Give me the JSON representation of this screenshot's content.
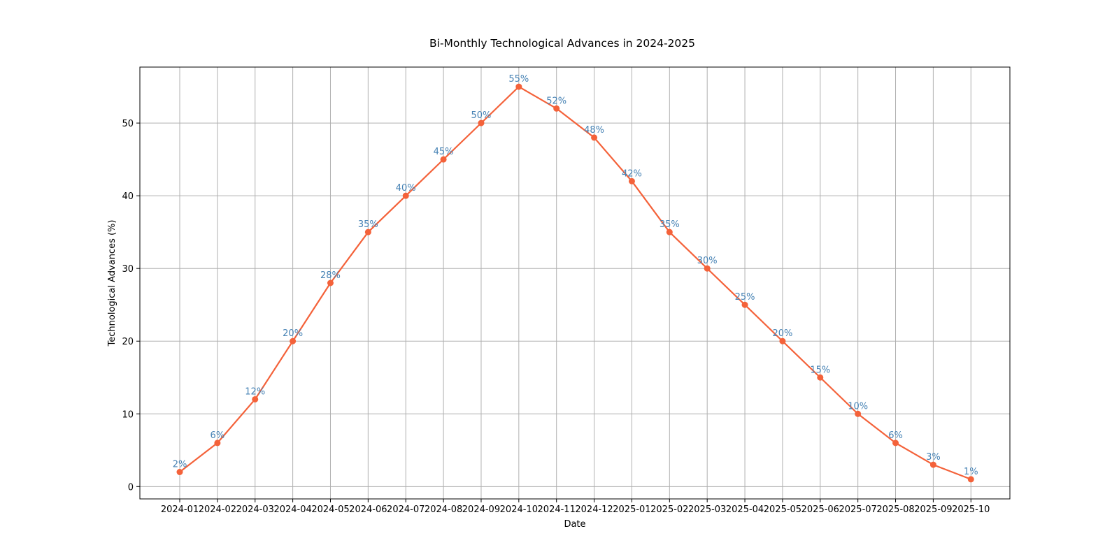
{
  "chart_data": {
    "type": "line",
    "title": "Bi-Monthly Technological Advances in 2024-2025",
    "xlabel": "Date",
    "ylabel": "Technological Advances (%)",
    "x": [
      "2024-01",
      "2024-02",
      "2024-03",
      "2024-04",
      "2024-05",
      "2024-06",
      "2024-07",
      "2024-08",
      "2024-09",
      "2024-10",
      "2024-11",
      "2024-12",
      "2025-01",
      "2025-02",
      "2025-03",
      "2025-04",
      "2025-05",
      "2025-06",
      "2025-07",
      "2025-08",
      "2025-09",
      "2025-10"
    ],
    "series": [
      {
        "values": [
          2,
          6,
          12,
          20,
          28,
          35,
          40,
          45,
          50,
          55,
          52,
          48,
          42,
          35,
          30,
          25,
          20,
          15,
          10,
          6,
          3,
          1
        ],
        "data_labels": [
          "2%",
          "6%",
          "12%",
          "20%",
          "28%",
          "35%",
          "40%",
          "45%",
          "50%",
          "55%",
          "52%",
          "48%",
          "42%",
          "35%",
          "30%",
          "25%",
          "20%",
          "15%",
          "10%",
          "6%",
          "3%",
          "1%"
        ],
        "color": "#f4623a",
        "marker": "circle"
      }
    ],
    "ylim": [
      -1.7,
      57.7
    ],
    "yticks": [
      0,
      10,
      20,
      30,
      40,
      50
    ],
    "grid": true,
    "legend": "none",
    "colors": {
      "line": "#f4623a",
      "data_label": "#4682b4",
      "grid": "#b0b0b0",
      "frame": "#000000"
    }
  }
}
